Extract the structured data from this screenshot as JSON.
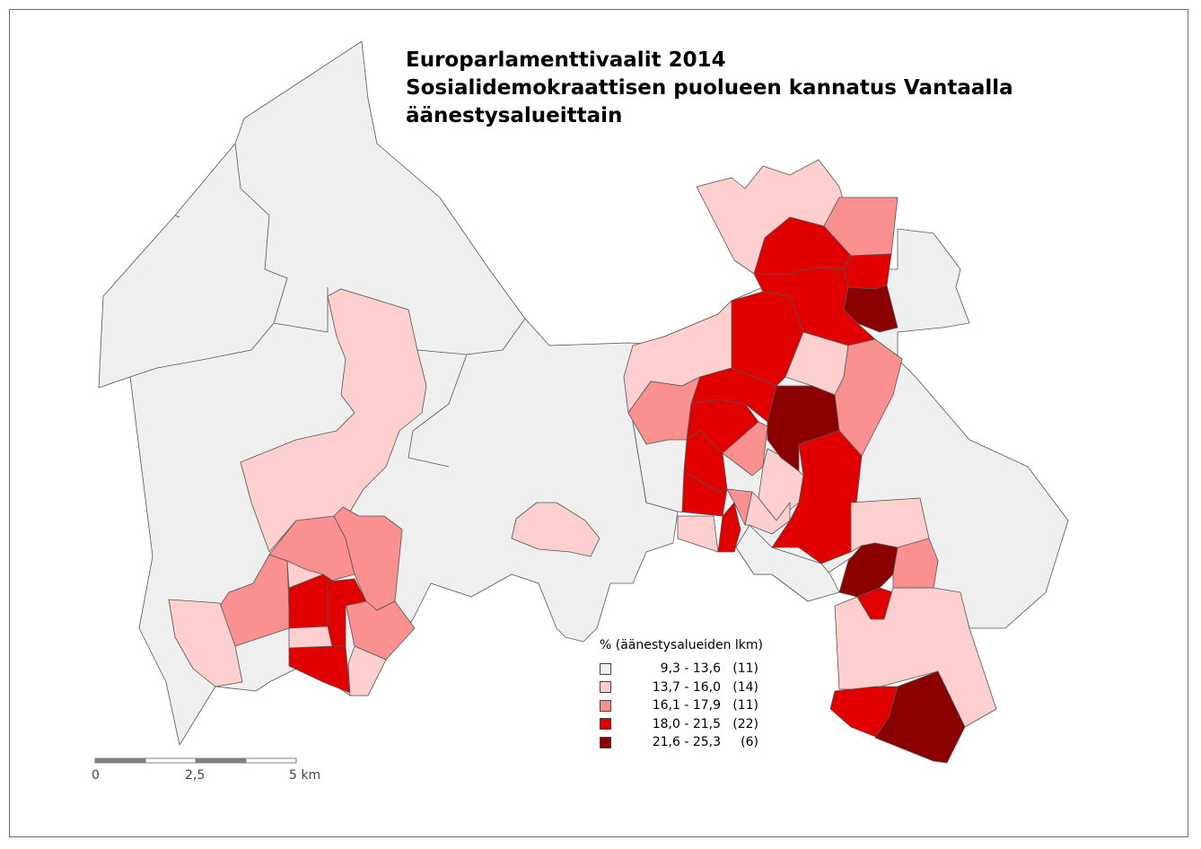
{
  "title": {
    "line1": "Europarlamenttivaalit 2014",
    "line2": "Sosialidemokraattisen puolueen kannatus Vantaalla",
    "line3": "äänestysalueittain"
  },
  "legend": {
    "title": "% (äänestysalueiden lkm)",
    "classes": [
      {
        "range": "9,3 - 13,6",
        "count": "(11)",
        "color": "#efefef"
      },
      {
        "range": "13,7 - 16,0",
        "count": "(14)",
        "color": "#fdcfcf"
      },
      {
        "range": "16,1 - 17,9",
        "count": "(11)",
        "color": "#fb9090"
      },
      {
        "range": "18,0 - 21,5",
        "count": "(22)",
        "color": "#e10000"
      },
      {
        "range": "21,6 - 25,3",
        "count": "(6)",
        "color": "#8b0000"
      }
    ]
  },
  "scale": {
    "labels": [
      "0",
      "2,5",
      "5 km"
    ]
  },
  "colors": {
    "border": "#6b6b6b",
    "region_edge": "#555555"
  }
}
